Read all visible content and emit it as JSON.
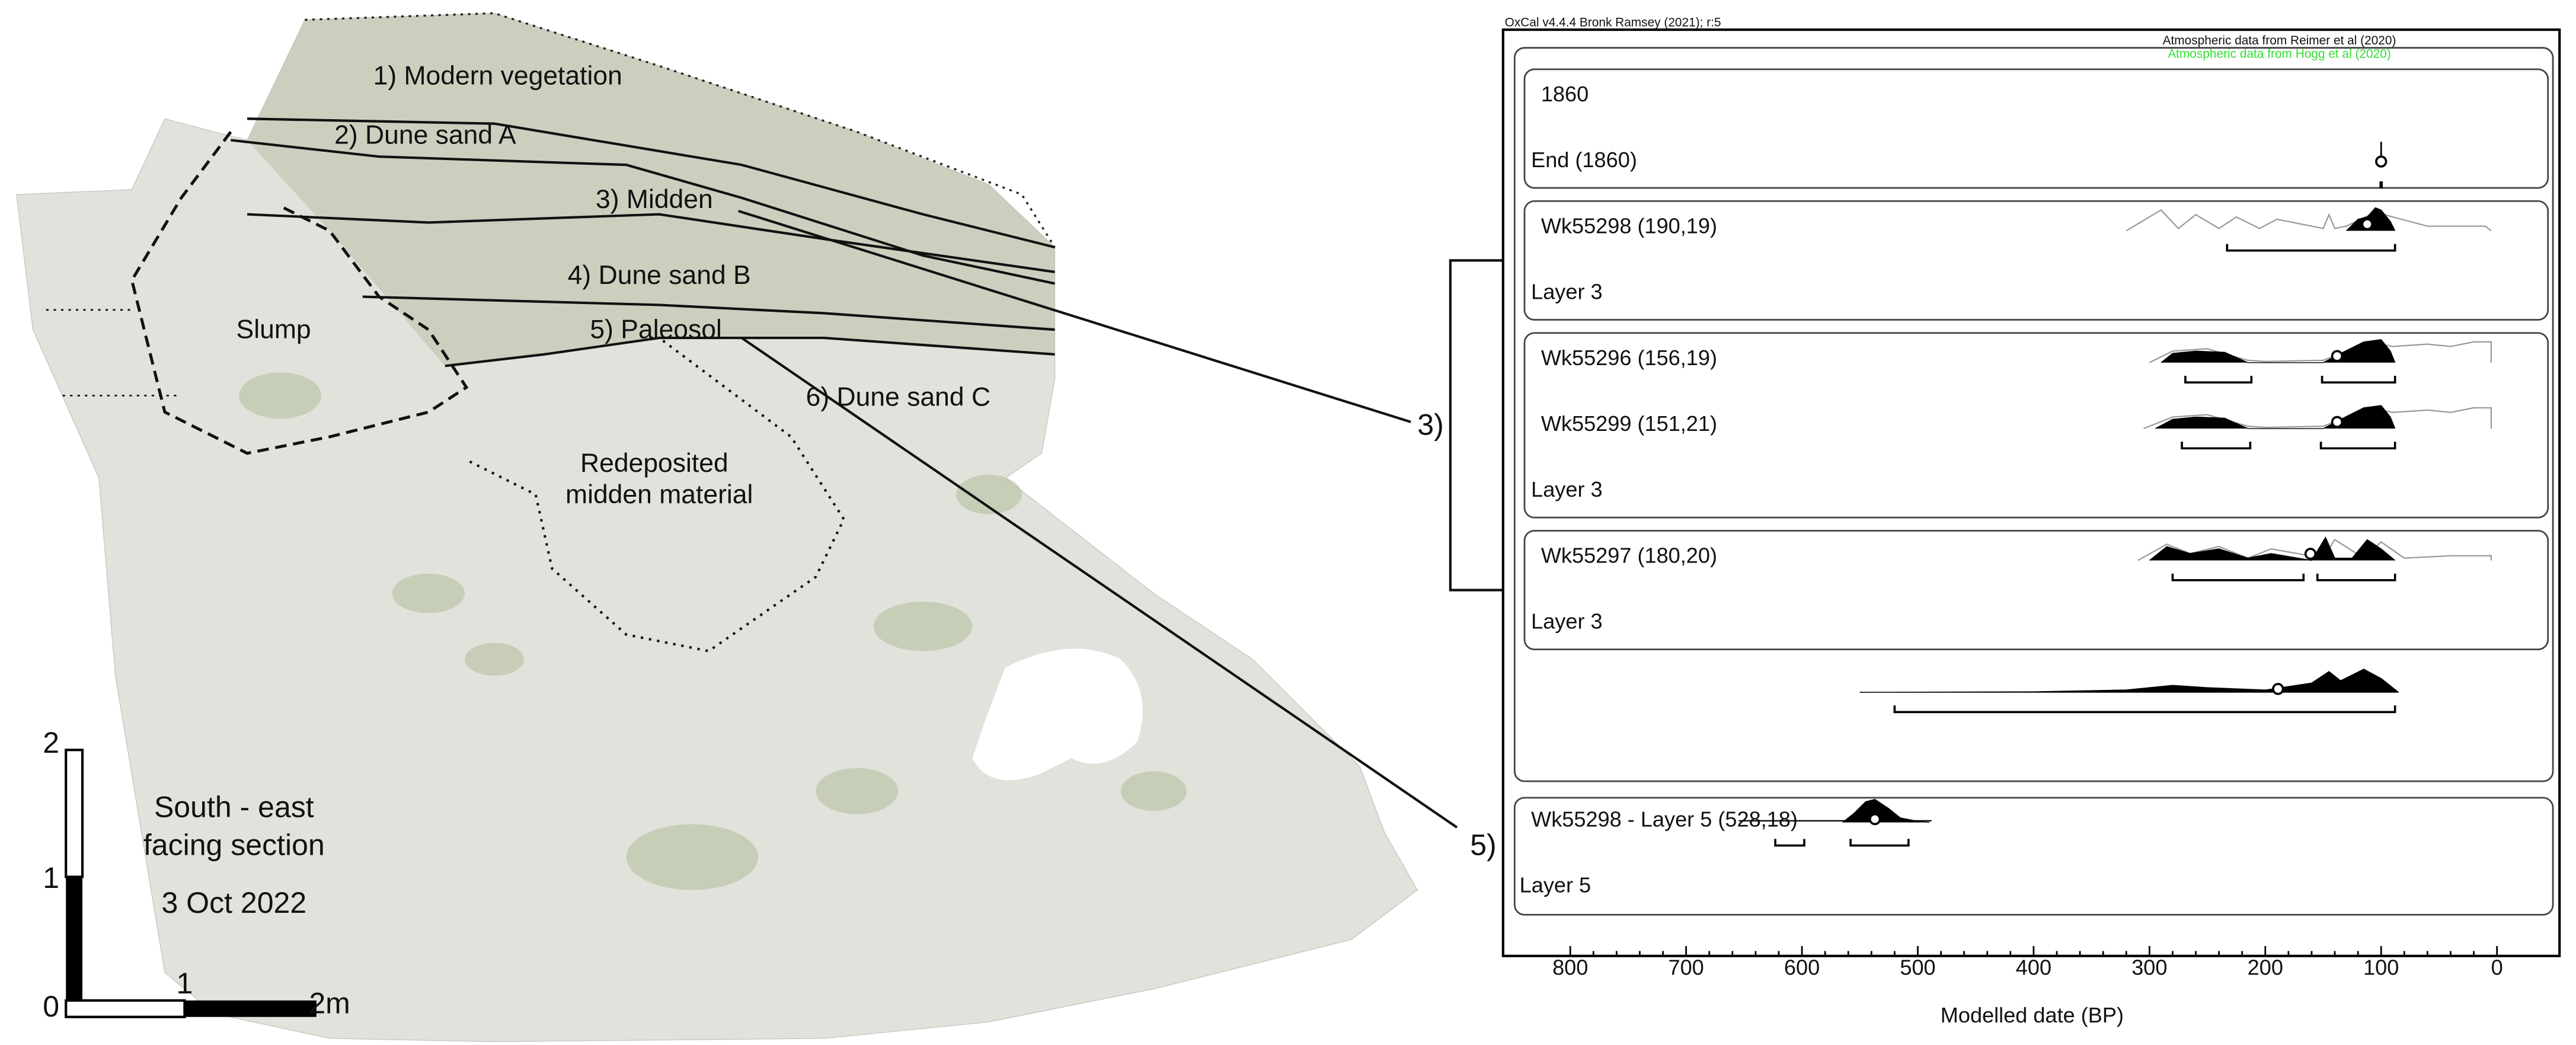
{
  "figure": {
    "photo_labels": [
      "1) Modern vegetation",
      "2) Dune sand A",
      "3) Midden",
      "4) Dune sand B",
      "Slump",
      "5) Paleosol",
      "6) Dune sand C",
      "Redeposited",
      "midden material"
    ],
    "caption": [
      "South - east",
      "facing section",
      "3 Oct 2022"
    ],
    "scale_vertical": [
      "2",
      "1",
      "0"
    ],
    "scale_horizontal": [
      "1",
      "2m"
    ],
    "callouts": [
      "3)",
      "5)"
    ]
  },
  "chart_data": {
    "type": "oxcal",
    "header": "OxCal v4.4.4 Bronk Ramsey (2021); r:5",
    "atmos": [
      "Atmospheric data from Reimer et al (2020)",
      "Atmospheric data from Hogg et al (2020)"
    ],
    "atmos_colors": [
      "#111111",
      "#33dd33"
    ],
    "xlabel": "Modelled date (BP)",
    "xlim": [
      858,
      -54
    ],
    "xticks": [
      800,
      700,
      600,
      500,
      400,
      300,
      200,
      100,
      0
    ],
    "boundary": {
      "title": "1860",
      "label": "End (1860)",
      "median": 100
    },
    "groups": [
      {
        "footer": "Layer 3",
        "entries": [
          {
            "label": "Wk55298 (190,19)",
            "median": 112,
            "ranges": [
              [
                233,
                88
              ]
            ],
            "prior_x": [
              320,
              290,
              275,
              260,
              240,
              225,
              205,
              190,
              150,
              145,
              140,
              130,
              105,
              60,
              10,
              5
            ],
            "prior": [
              0,
              0.9,
              0.1,
              0.7,
              0.1,
              0.6,
              0.1,
              0.5,
              0.1,
              0.7,
              0.1,
              0.2,
              0.8,
              0.2,
              0.2,
              0
            ],
            "x": [
              130,
              120,
              112,
              105,
              100,
              92,
              88
            ],
            "density": [
              0,
              0.5,
              0.6,
              1,
              0.9,
              0.4,
              0
            ]
          }
        ]
      },
      {
        "footer": "Layer 3",
        "entries": [
          {
            "label": "Wk55296 (156,19)",
            "median": 138,
            "ranges": [
              [
                269,
                212
              ],
              [
                151,
                88
              ]
            ],
            "prior_x": [
              300,
              280,
              250,
              215,
              200,
              150,
              130,
              110,
              90,
              60,
              40,
              20,
              5,
              5
            ],
            "prior": [
              0,
              0.5,
              0.6,
              0.1,
              0.05,
              0.1,
              0.5,
              0.9,
              0.7,
              0.8,
              0.7,
              0.9,
              0.9,
              0
            ],
            "x": [
              290,
              280,
              260,
              235,
              215,
              150,
              135,
              115,
              100,
              92,
              88
            ],
            "density": [
              0,
              0.4,
              0.5,
              0.45,
              0,
              0,
              0.4,
              0.9,
              1,
              0.5,
              0
            ]
          },
          {
            "label": "Wk55299 (151,21)",
            "median": 138,
            "ranges": [
              [
                272,
                213
              ],
              [
                152,
                88
              ]
            ],
            "prior_x": [
              305,
              280,
              250,
              215,
              200,
              150,
              130,
              110,
              90,
              60,
              40,
              20,
              5,
              5
            ],
            "prior": [
              0,
              0.5,
              0.6,
              0.1,
              0.05,
              0.1,
              0.5,
              0.9,
              0.7,
              0.8,
              0.7,
              0.9,
              0.9,
              0
            ],
            "x": [
              295,
              280,
              260,
              235,
              215,
              150,
              135,
              115,
              100,
              92,
              88
            ],
            "density": [
              0,
              0.4,
              0.5,
              0.45,
              0,
              0,
              0.4,
              0.9,
              1,
              0.5,
              0
            ]
          }
        ]
      },
      {
        "footer": "Layer 3",
        "entries": [
          {
            "label": "Wk55297 (180,20)",
            "median": 161,
            "ranges": [
              [
                280,
                167
              ],
              [
                155,
                88
              ]
            ],
            "prior_x": [
              310,
              285,
              265,
              240,
              215,
              195,
              150,
              140,
              115,
              100,
              80,
              40,
              5,
              5
            ],
            "prior": [
              0,
              0.7,
              0.3,
              0.6,
              0.1,
              0.5,
              0.1,
              0.9,
              0.1,
              0.8,
              0.1,
              0.2,
              0.2,
              0
            ],
            "x": [
              300,
              285,
              265,
              240,
              215,
              195,
              160,
              148,
              140,
              125,
              112,
              100,
              88
            ],
            "density": [
              0,
              0.6,
              0.3,
              0.5,
              0.1,
              0.3,
              0,
              1,
              0.1,
              0.1,
              0.9,
              0.5,
              0
            ]
          }
        ]
      }
    ],
    "span": {
      "median": 189,
      "ranges": [
        [
          520,
          88
        ]
      ],
      "x": [
        550,
        400,
        320,
        280,
        250,
        200,
        160,
        145,
        135,
        115,
        100,
        85
      ],
      "density": [
        0,
        0.02,
        0.1,
        0.3,
        0.2,
        0.1,
        0.4,
        0.9,
        0.5,
        1,
        0.6,
        0
      ]
    },
    "outlier": {
      "label": "Wk55298 - Layer 5 (528,18)",
      "footer": "Layer 5",
      "median": 537,
      "ranges": [
        [
          623,
          598
        ],
        [
          558,
          508
        ]
      ],
      "x": [
        565,
        555,
        545,
        537,
        525,
        515,
        500,
        490
      ],
      "density": [
        0,
        0.4,
        0.9,
        1,
        0.6,
        0.2,
        0.05,
        0
      ]
    }
  }
}
